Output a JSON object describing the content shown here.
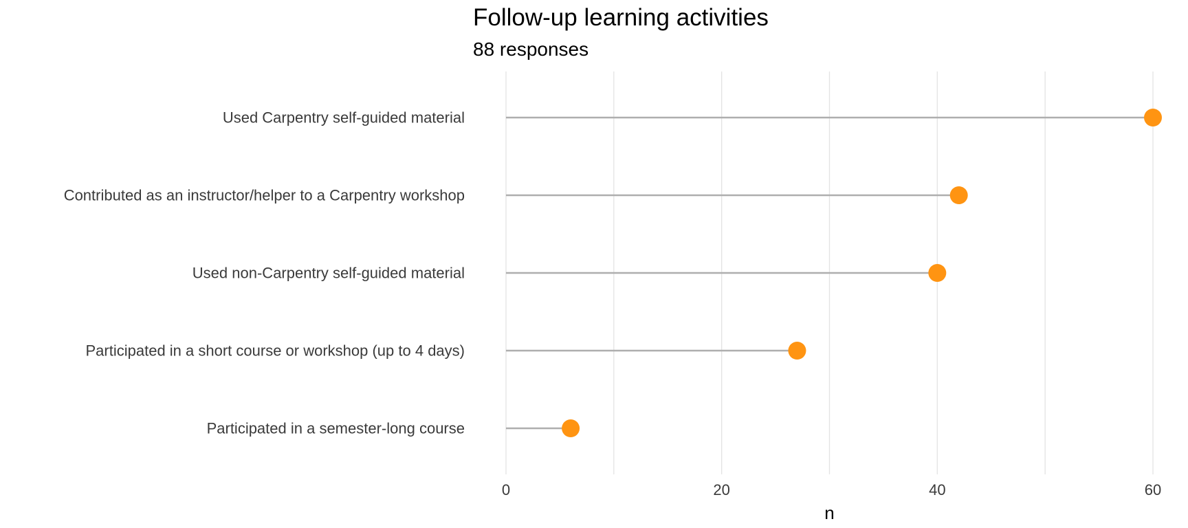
{
  "chart_data": {
    "type": "lollipop",
    "title": "Follow-up learning activities",
    "subtitle": "88 responses",
    "xlabel": "n",
    "ylabel": "",
    "xlim": [
      0,
      60
    ],
    "x_ticks": [
      0,
      20,
      40,
      60
    ],
    "grid": true,
    "categories": [
      "Used Carpentry self-guided material",
      "Contributed as an instructor/helper to a Carpentry workshop",
      "Used non-Carpentry self-guided material",
      "Participated in a short course or workshop (up to 4 days)",
      "Participated in a semester-long course"
    ],
    "values": [
      60,
      42,
      40,
      27,
      6
    ],
    "colors": {
      "point": "#FF9412",
      "stem": "#AEAEAE",
      "grid": "#E3E3E3"
    }
  }
}
